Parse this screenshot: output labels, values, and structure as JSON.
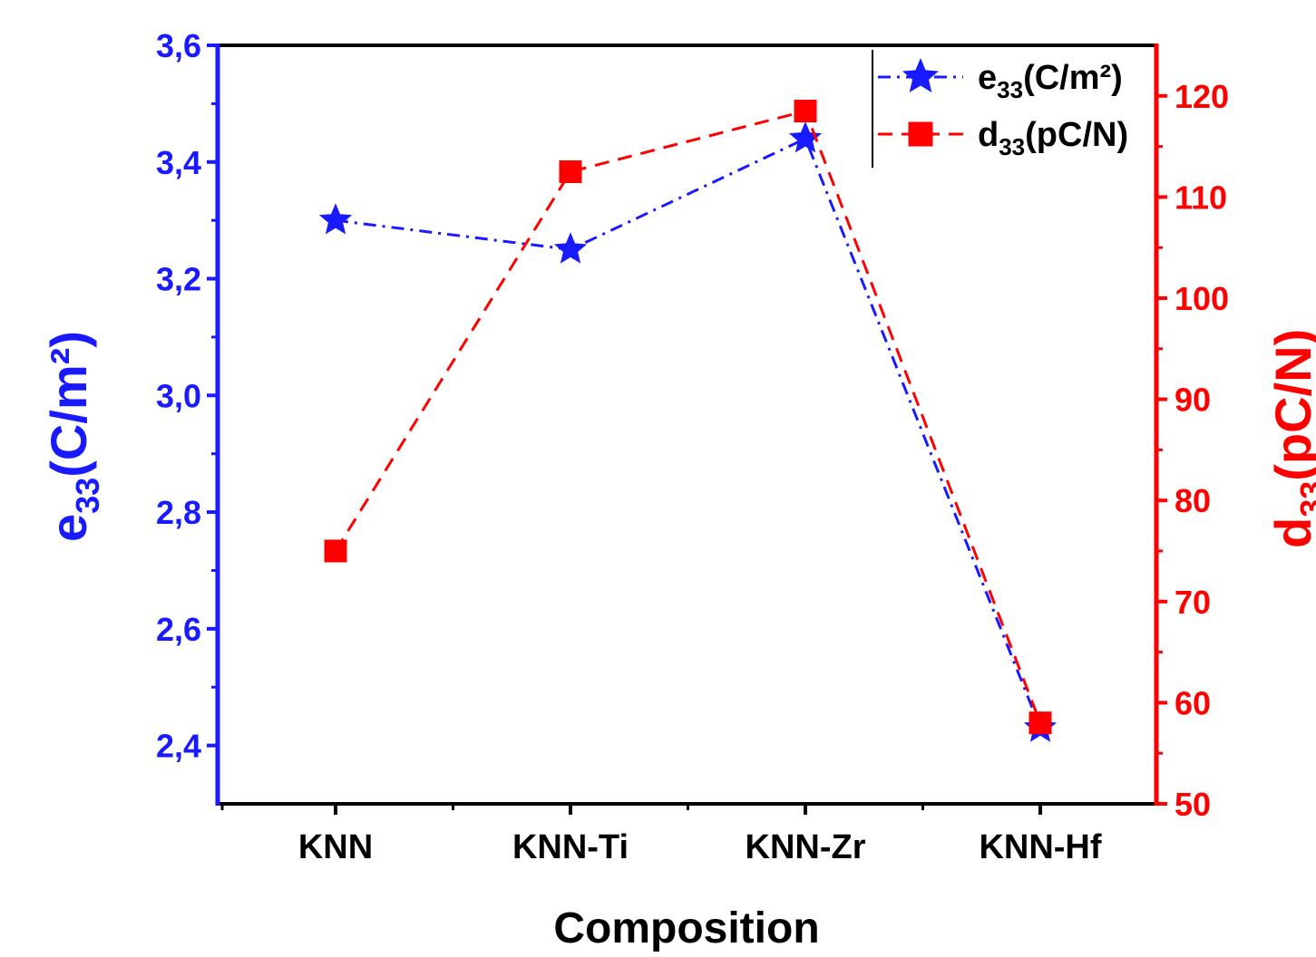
{
  "chart_data": {
    "type": "line",
    "categories": [
      "KNN",
      "KNN-Ti",
      "KNN-Zr",
      "KNN-Hf"
    ],
    "xlabel": "Composition",
    "left_axis": {
      "label_main": "e",
      "label_sub": "33",
      "label_rest": "(C/m²)",
      "ylim": [
        2.3,
        3.6
      ],
      "ticks": [
        "2,4",
        "2,6",
        "2,8",
        "3,0",
        "3,2",
        "3,4",
        "3,6"
      ],
      "tick_values": [
        2.4,
        2.6,
        2.8,
        3.0,
        3.2,
        3.4,
        3.6
      ],
      "color": "#1a1aff"
    },
    "right_axis": {
      "label_main": "d",
      "label_sub": "33",
      "label_rest": "(pC/N)",
      "ylim": [
        50,
        125
      ],
      "ticks": [
        "50",
        "60",
        "70",
        "80",
        "90",
        "100",
        "110",
        "120"
      ],
      "tick_values": [
        50,
        60,
        70,
        80,
        90,
        100,
        110,
        120
      ],
      "color": "#ff0000"
    },
    "series": [
      {
        "name_main": "e",
        "name_sub": "33",
        "name_rest": "(C/m²)",
        "axis": "left",
        "marker": "star",
        "line_style": "dash-dot",
        "color": "#1a1aff",
        "values": [
          3.3,
          3.25,
          3.44,
          2.43
        ]
      },
      {
        "name_main": "d",
        "name_sub": "33",
        "name_rest": "(pC/N)",
        "axis": "right",
        "marker": "square",
        "line_style": "dash",
        "color": "#ff0000",
        "values": [
          75,
          112.5,
          118.5,
          58
        ]
      }
    ],
    "legend_position": "top-right",
    "grid": false
  }
}
